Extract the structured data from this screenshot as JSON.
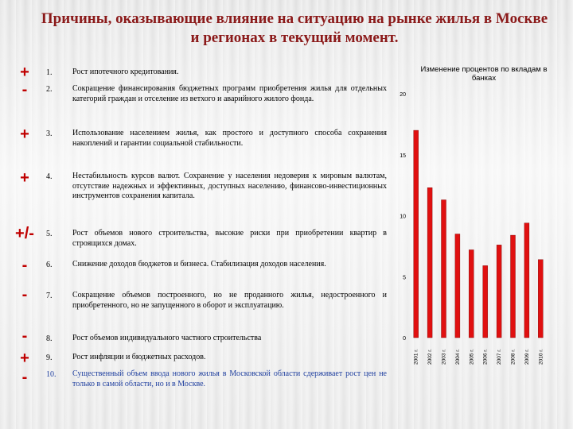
{
  "title": "Причины, оказывающие влияние на ситуацию на рынке жилья в Москве и регионах  в текущий момент.",
  "items": [
    {
      "sign": "+",
      "num": "1.",
      "text": "Рост ипотечного кредитования."
    },
    {
      "sign": "-",
      "num": "2.",
      "text": "Сокращение финансирования бюджетных программ приобретения жилья для отдельных категорий граждан и отселение из ветхого и аварийного жилого фонда."
    },
    {
      "sign": "+",
      "num": "3.",
      "text": "Использование населением жилья, как простого и доступного способа сохранения накоплений и гарантии социальной стабильности."
    },
    {
      "sign": "+",
      "num": "4.",
      "text": "Нестабильность курсов валют. Сохранение у населения недоверия к мировым валютам, отсутствие надежных и эффективных, доступных населению, финансово-инвестиционных инструментов сохранения капитала."
    },
    {
      "sign": "+/-",
      "num": "5.",
      "text": "Рост объемов нового строительства, высокие риски при приобретении квартир в строящихся домах."
    },
    {
      "sign": "-",
      "num": "6.",
      "text": "Снижение доходов бюджетов и бизнеса. Стабилизация доходов населения."
    },
    {
      "sign": "-",
      "num": "7.",
      "text": "Сокращение объемов построенного, но не проданного жилья, недостроенного и приобретенного, но не запущенного в оборот и эксплуатацию."
    },
    {
      "sign": "-",
      "num": "8.",
      "text": "Рост объемов индивидуального частного строительства"
    },
    {
      "sign": "+",
      "num": "9.",
      "text": "Рост инфляции и бюджетных расходов."
    },
    {
      "sign": "-",
      "num": "10.",
      "text": "Существенный объем ввода нового жилья в Московской области сдерживает рост цен не только в самой области, но и в Москве."
    }
  ],
  "colors": {
    "title": "#8b1a1a",
    "sign": "#c00000",
    "bar": "#e01010",
    "item10": "#1f3f9f"
  },
  "chart_data": {
    "type": "bar",
    "title": "Изменение процентов по вкладам в банках",
    "categories": [
      "2001 г.",
      "2002 г.",
      "2003 г.",
      "2004 г.",
      "2005 г.",
      "2006 г.",
      "2007 г.",
      "2008 г.",
      "2009 г.",
      "2010 г."
    ],
    "values": [
      17,
      12.3,
      11.3,
      8.5,
      7.2,
      5.9,
      7.6,
      8.4,
      9.4,
      6.4
    ],
    "yticks": [
      0,
      5,
      10,
      15,
      20
    ],
    "ylim": [
      0,
      20
    ],
    "grid": false
  }
}
